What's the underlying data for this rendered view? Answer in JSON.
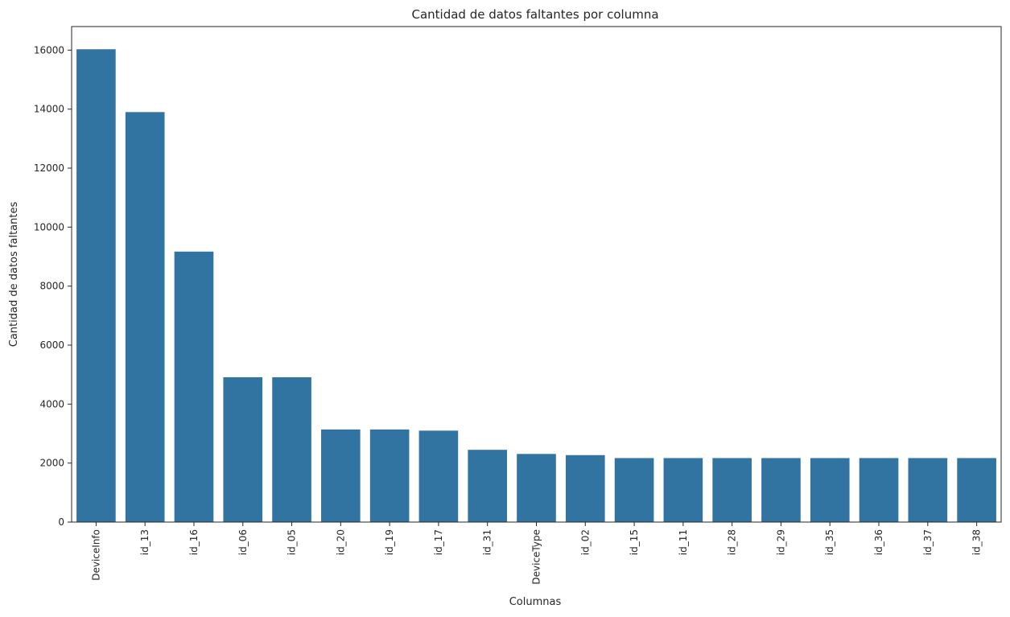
{
  "chart_data": {
    "type": "bar",
    "title": "Cantidad de datos faltantes por columna",
    "xlabel": "Columnas",
    "ylabel": "Cantidad de datos faltantes",
    "categories": [
      "DeviceInfo",
      "id_13",
      "id_16",
      "id_06",
      "id_05",
      "id_20",
      "id_19",
      "id_17",
      "id_31",
      "DeviceType",
      "id_02",
      "id_15",
      "id_11",
      "id_28",
      "id_29",
      "id_35",
      "id_36",
      "id_37",
      "id_38"
    ],
    "values": [
      16030,
      13900,
      9170,
      4910,
      4910,
      3140,
      3140,
      3100,
      2450,
      2310,
      2270,
      2170,
      2170,
      2170,
      2170,
      2170,
      2170,
      2170,
      2170
    ],
    "ylim": [
      0,
      16800
    ],
    "yticks": [
      0,
      2000,
      4000,
      6000,
      8000,
      10000,
      12000,
      14000,
      16000
    ],
    "bar_color": "#3274a1",
    "grid": false,
    "legend": "none",
    "xtick_rotation": "vertical"
  }
}
